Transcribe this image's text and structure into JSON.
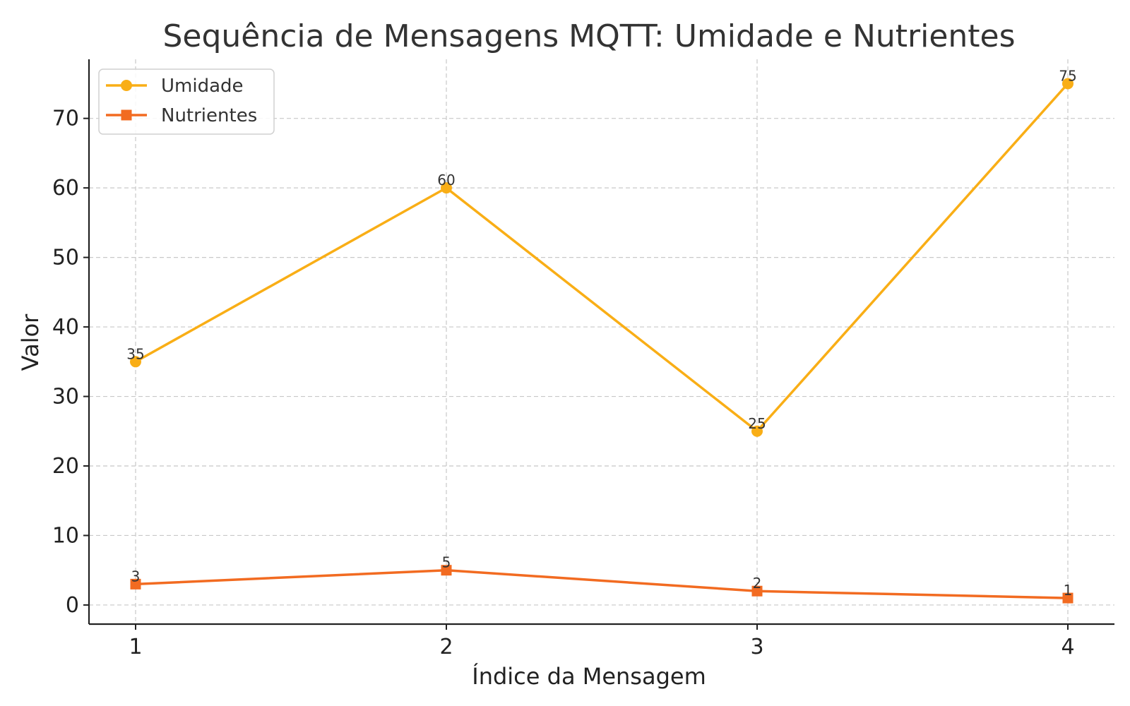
{
  "chart_data": {
    "type": "line",
    "title": "Sequência de Mensagens MQTT: Umidade e Nutrientes",
    "xlabel": "Índice da Mensagem",
    "ylabel": "Valor",
    "x": [
      1,
      2,
      3,
      4
    ],
    "xticks": [
      "1",
      "2",
      "3",
      "4"
    ],
    "yticks": [
      "0",
      "10",
      "20",
      "30",
      "40",
      "50",
      "60",
      "70"
    ],
    "ylim": [
      -2.75,
      78.5
    ],
    "xlim": [
      0.85,
      4.15
    ],
    "grid": true,
    "legend_position": "top-left",
    "series": [
      {
        "name": "Umidade",
        "values": [
          35,
          60,
          25,
          75
        ],
        "labels": [
          "35",
          "60",
          "25",
          "75"
        ],
        "color": "#F9AE16",
        "marker": "circle"
      },
      {
        "name": "Nutrientes",
        "values": [
          3,
          5,
          2,
          1
        ],
        "labels": [
          "3",
          "5",
          "2",
          "1"
        ],
        "color": "#F26B21",
        "marker": "square"
      }
    ]
  }
}
